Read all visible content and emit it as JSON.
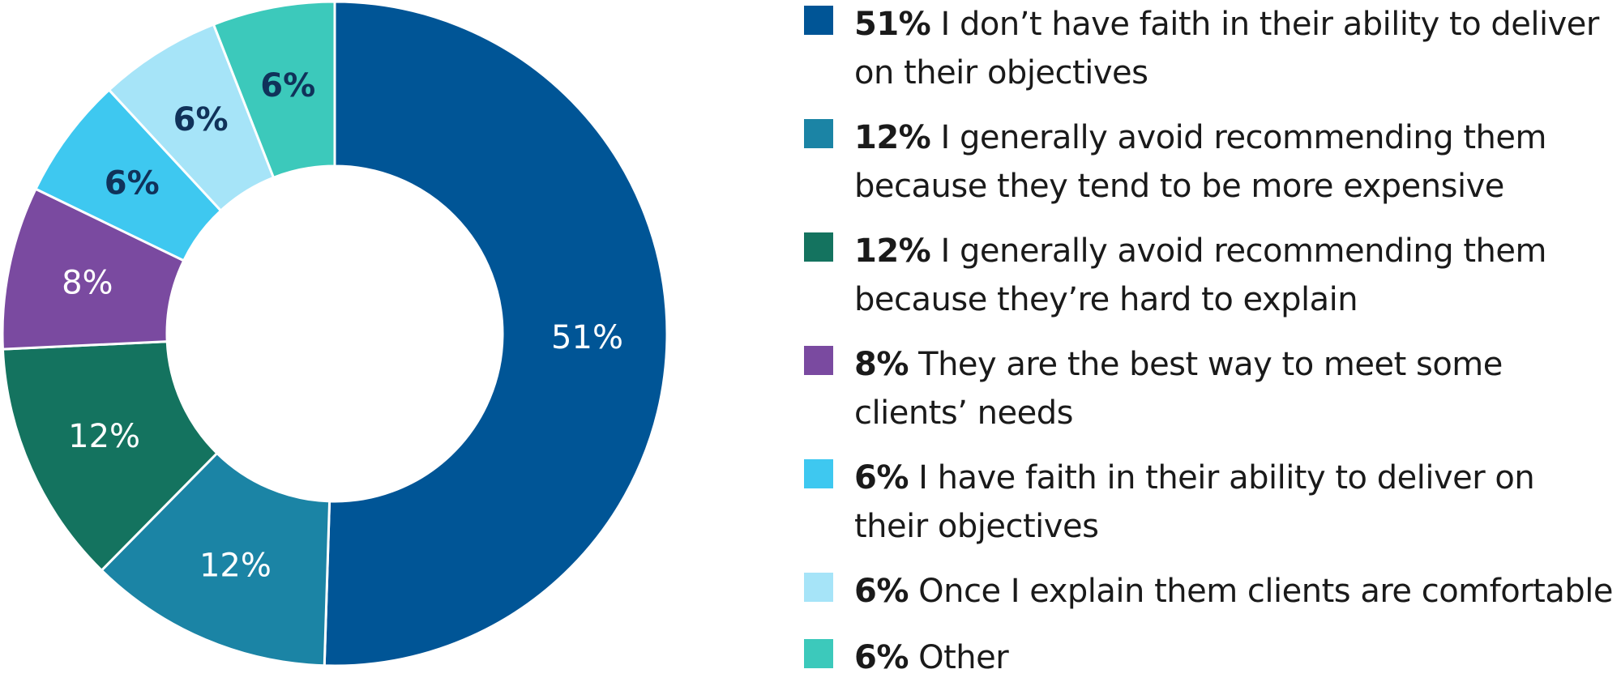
{
  "chart_data": {
    "type": "pie",
    "donut": true,
    "categories": [
      "I don’t have faith in their ability to deliver on their objectives",
      "I generally avoid recommending them because they tend to be more expensive",
      "I generally avoid recommending them because they’re hard to explain",
      "They are the best way to meet some clients’ needs",
      "I have faith in their ability to deliver on their objectives",
      "Once I explain them clients are comfortable",
      "Other"
    ],
    "values": [
      51,
      12,
      12,
      8,
      6,
      6,
      6
    ],
    "labels": [
      "51%",
      "12%",
      "12%",
      "8%",
      "6%",
      "6%",
      "6%"
    ],
    "colors": [
      "#005596",
      "#1b84a5",
      "#14735f",
      "#7a4aa0",
      "#3ec8f0",
      "#a6e4f8",
      "#3cc9bb"
    ],
    "label_colors": [
      "#ffffff",
      "#ffffff",
      "#ffffff",
      "#ffffff",
      "#10325a",
      "#10325a",
      "#10325a"
    ],
    "legend_position": "right"
  }
}
